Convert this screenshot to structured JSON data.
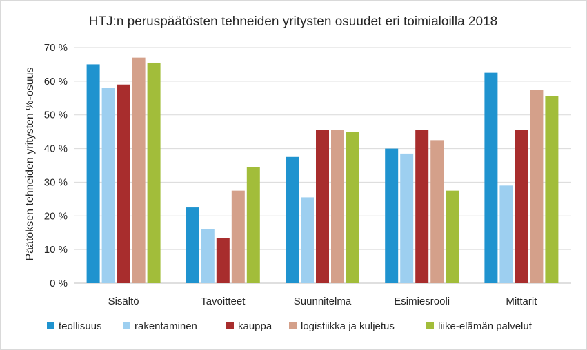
{
  "chart_data": {
    "type": "bar",
    "title": "HTJ:n peruspäätösten tehneiden yritysten osuudet eri toimialoilla 2018",
    "xlabel": "",
    "ylabel": "Päätöksen tehneiden yritysten %-osuus",
    "ylim": [
      0,
      70
    ],
    "yticks": [
      0,
      10,
      20,
      30,
      40,
      50,
      60,
      70
    ],
    "ytick_labels": [
      "0 %",
      "10 %",
      "20 %",
      "30 %",
      "40 %",
      "50 %",
      "60 %",
      "70 %"
    ],
    "grid": true,
    "legend_position": "bottom",
    "categories": [
      "Sisältö",
      "Tavoitteet",
      "Suunnitelma",
      "Esimiesrooli",
      "Mittarit"
    ],
    "series": [
      {
        "name": "teollisuus",
        "color": "#1f93cf",
        "values": [
          65,
          22.5,
          37.5,
          40,
          62.5
        ]
      },
      {
        "name": "rakentaminen",
        "color": "#9dcff0",
        "values": [
          58,
          16,
          25.5,
          38.5,
          29
        ]
      },
      {
        "name": "kauppa",
        "color": "#a82d2d",
        "values": [
          59,
          13.5,
          45.5,
          45.5,
          45.5
        ]
      },
      {
        "name": "logistiikka ja kuljetus",
        "color": "#d4a08a",
        "values": [
          67,
          27.5,
          45.5,
          42.5,
          57.5
        ]
      },
      {
        "name": "liike-elämän palvelut",
        "color": "#a2bd3a",
        "values": [
          65.5,
          34.5,
          45,
          27.5,
          55.5
        ]
      }
    ]
  }
}
